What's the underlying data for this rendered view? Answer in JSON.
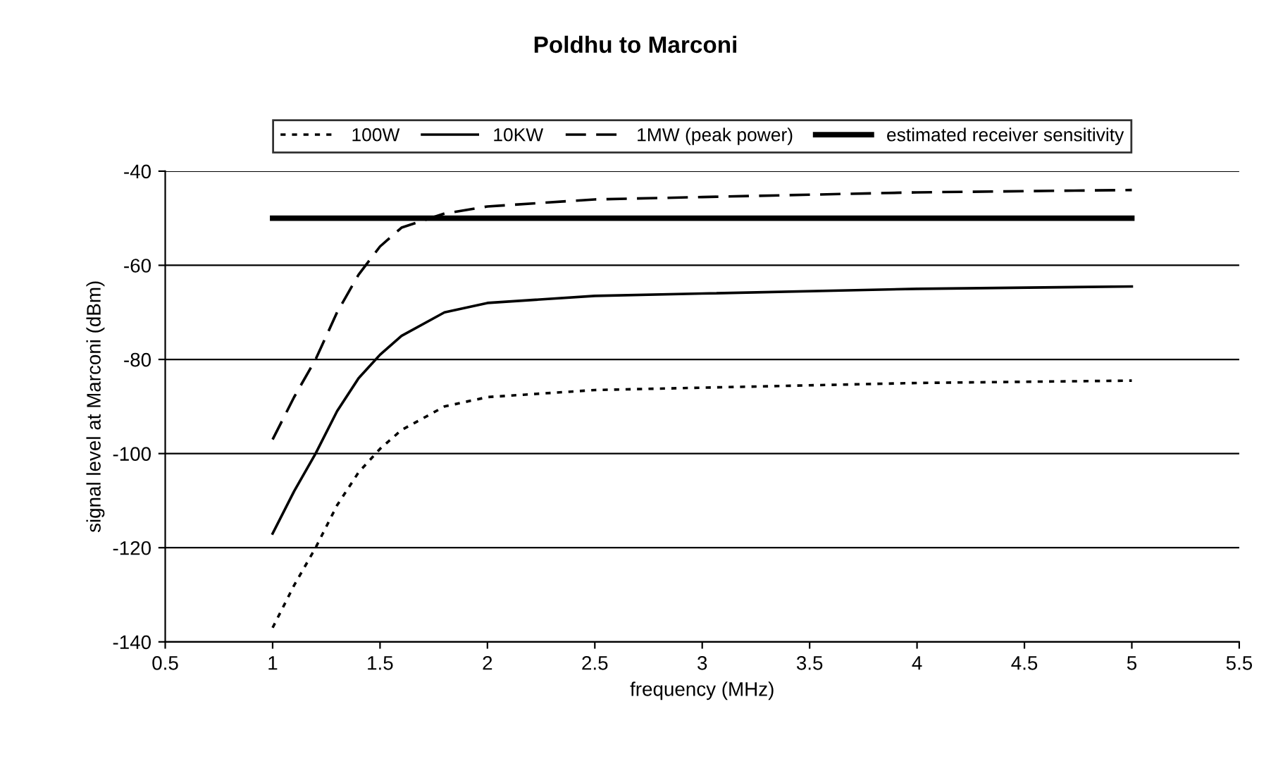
{
  "chart_data": {
    "type": "line",
    "title": "Poldhu to Marconi",
    "xlabel": "frequency (MHz)",
    "ylabel": "signal level at Marconi (dBm)",
    "xlim": [
      0.5,
      5.5
    ],
    "xticks": [
      0.5,
      1,
      1.5,
      2,
      2.5,
      3,
      3.5,
      4,
      4.5,
      5,
      5.5
    ],
    "ylim": [
      -140,
      -40
    ],
    "yticks": [
      -140,
      -120,
      -100,
      -80,
      -60,
      -40
    ],
    "grid": "y",
    "legend": "top",
    "marker": "none",
    "series": [
      {
        "name": "100W",
        "color": "#000000",
        "line_style": "dotted",
        "x": [
          1,
          1.1,
          1.2,
          1.3,
          1.4,
          1.5,
          1.6,
          1.8,
          2,
          2.5,
          3,
          4,
          5
        ],
        "values": [
          -137,
          -128,
          -120,
          -111,
          -104,
          -99,
          -95,
          -90,
          -88,
          -86.5,
          -86,
          -85,
          -84.5
        ]
      },
      {
        "name": "10KW",
        "color": "#000000",
        "line_style": "solid",
        "x": [
          1,
          1.1,
          1.2,
          1.3,
          1.4,
          1.5,
          1.6,
          1.8,
          2,
          2.5,
          3,
          4,
          5
        ],
        "values": [
          -117,
          -108,
          -100,
          -91,
          -84,
          -79,
          -75,
          -70,
          -68,
          -66.5,
          -66,
          -65,
          -64.5
        ]
      },
      {
        "name": "1MW (peak power)",
        "color": "#000000",
        "line_style": "dashed",
        "x": [
          1,
          1.1,
          1.2,
          1.3,
          1.4,
          1.5,
          1.6,
          1.8,
          2,
          2.5,
          3,
          4,
          5
        ],
        "values": [
          -97,
          -88,
          -80,
          -70,
          -62,
          -56,
          -52,
          -49,
          -47.5,
          -46,
          -45.5,
          -44.5,
          -44
        ]
      },
      {
        "name": "estimated receiver sensitivity",
        "color": "#000000",
        "line_style": "solid",
        "x": [
          1,
          5
        ],
        "values": [
          -50,
          -50
        ]
      }
    ]
  }
}
